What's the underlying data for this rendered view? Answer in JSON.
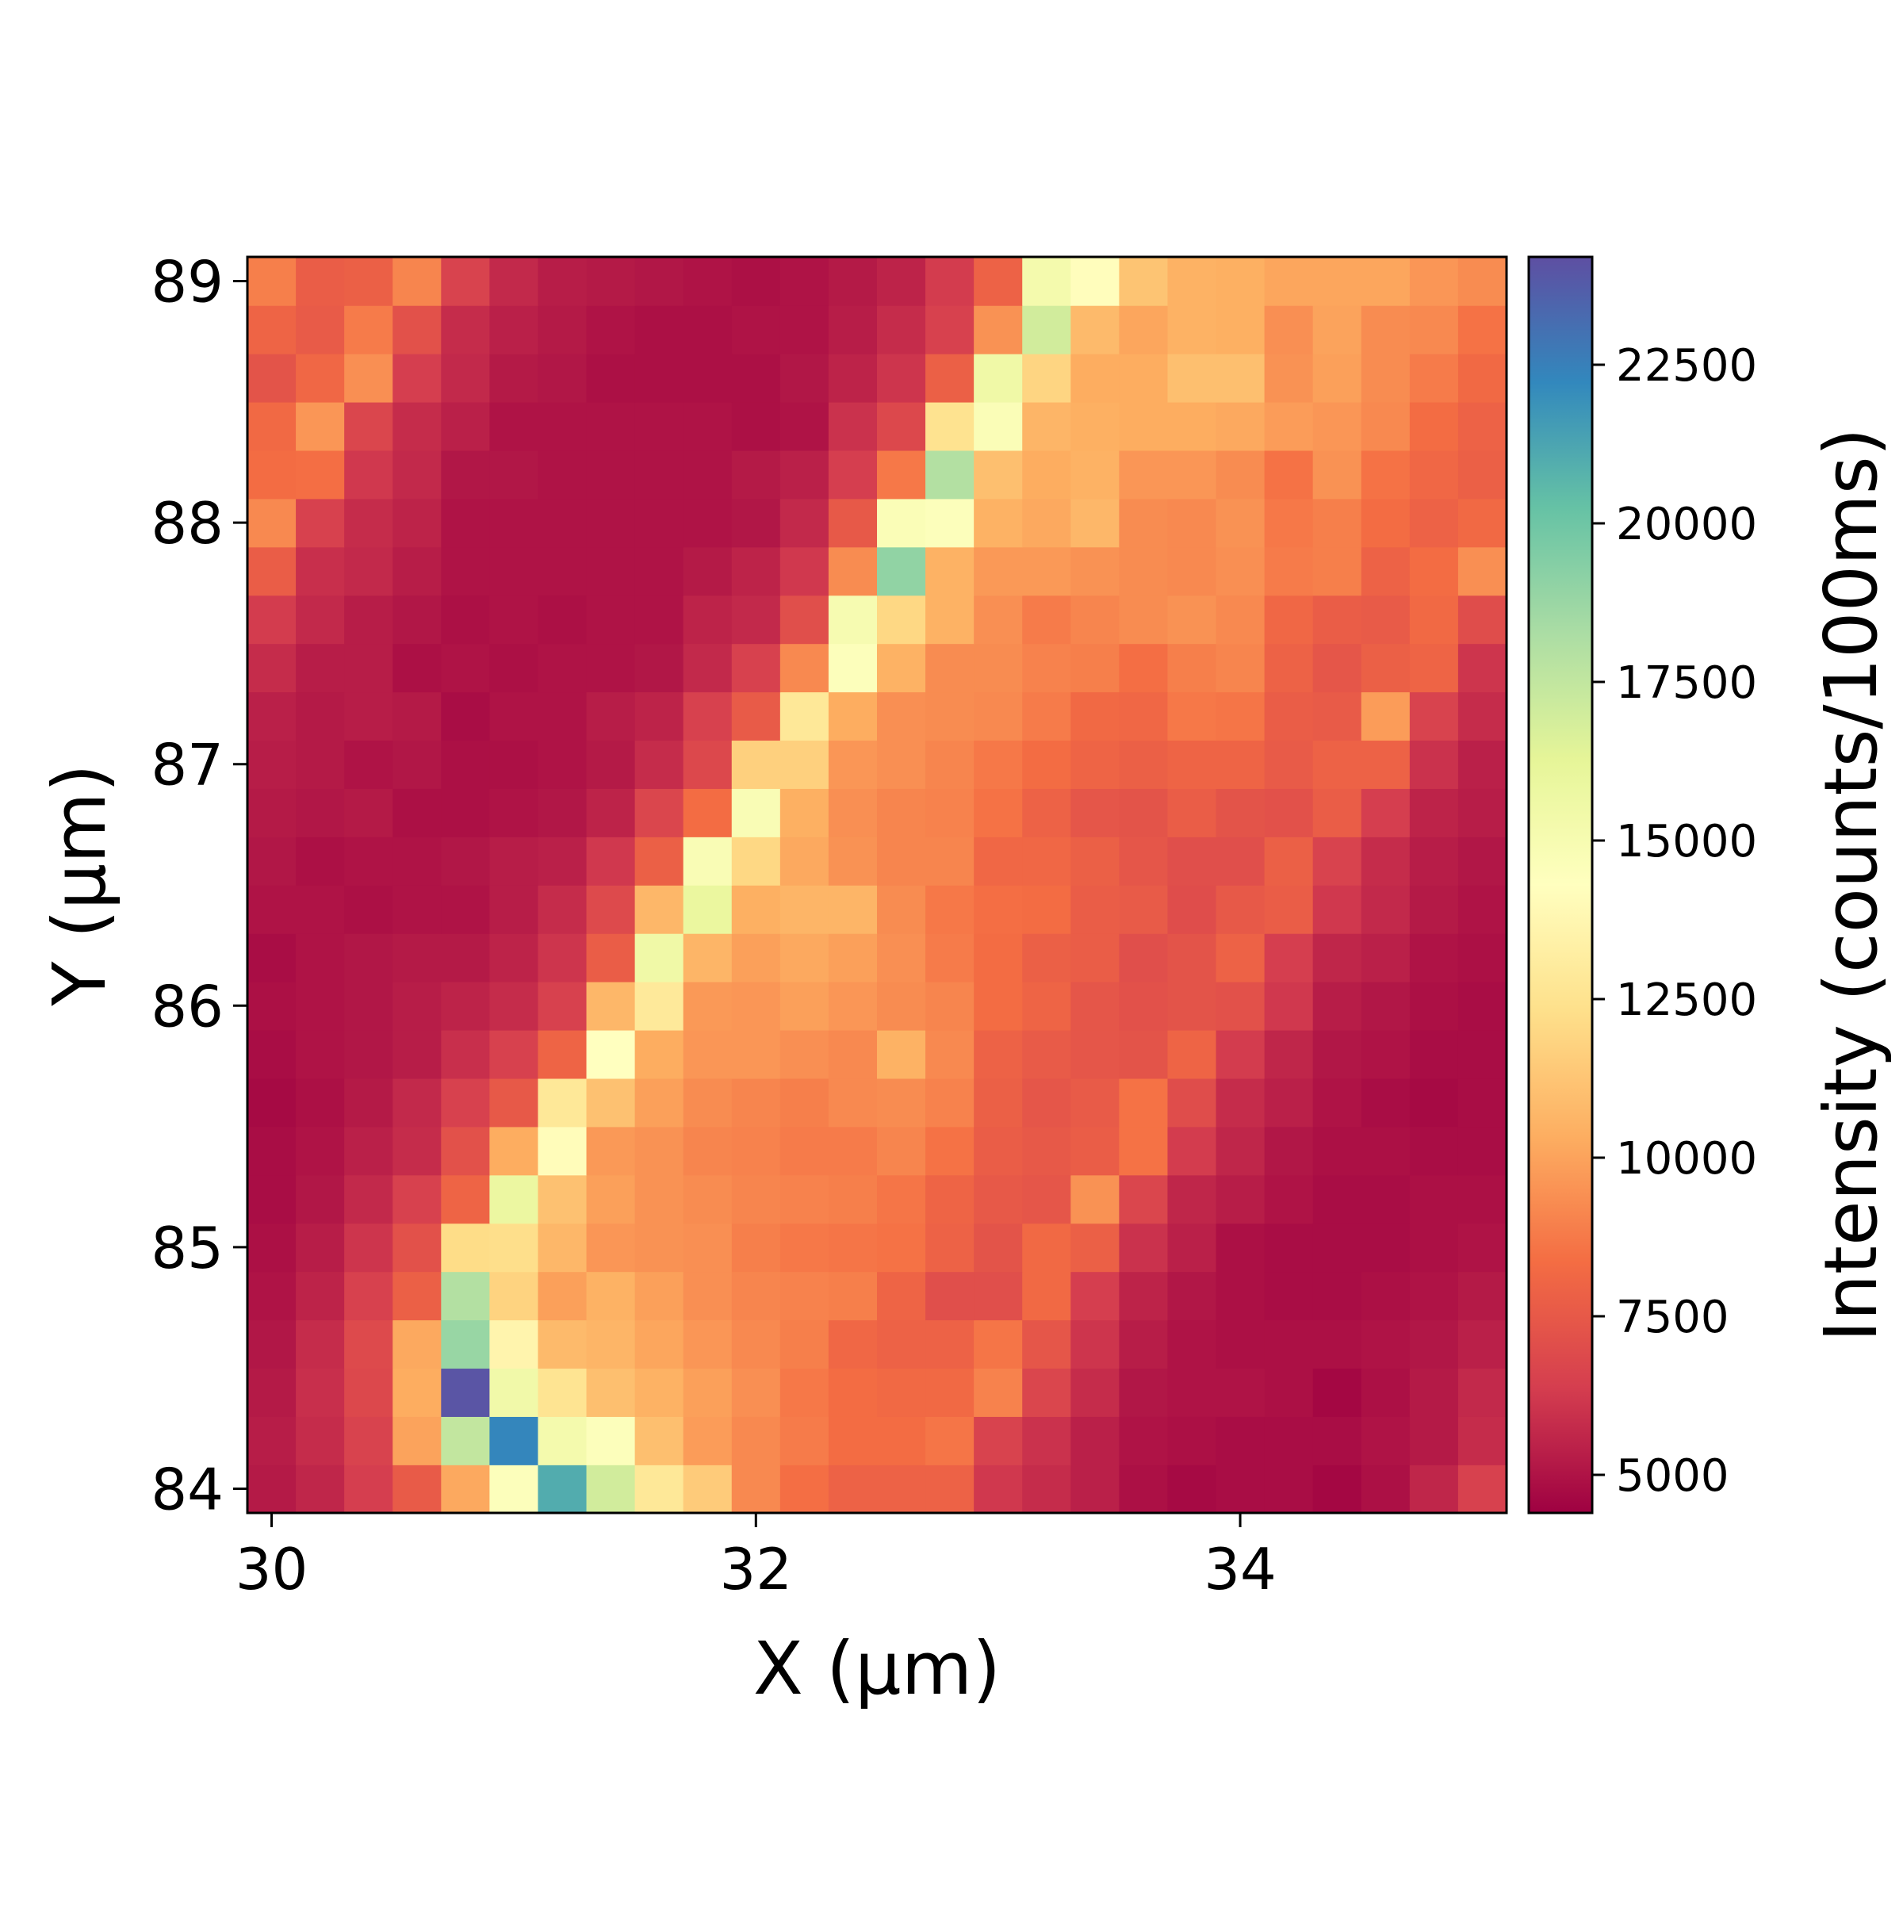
{
  "chart_data": {
    "type": "heatmap",
    "colormap": "Spectral",
    "xlabel": "X (µm)",
    "ylabel": "Y (µm)",
    "colorbar_label": "Intensity (counts/100ms)",
    "xlim": [
      29.9,
      35.1
    ],
    "ylim": [
      83.9,
      89.1
    ],
    "clim": [
      4400,
      24200
    ],
    "x_ticks": [
      "30",
      "32",
      "34"
    ],
    "y_ticks": [
      "84",
      "85",
      "86",
      "87",
      "88",
      "89"
    ],
    "colorbar_ticks": [
      "5000",
      "7500",
      "10000",
      "12500",
      "15000",
      "17500",
      "20000",
      "22500"
    ],
    "x": [
      30.0,
      30.2,
      30.4,
      30.6,
      30.8,
      31.0,
      31.2,
      31.4,
      31.6,
      31.8,
      32.0,
      32.2,
      32.4,
      32.6,
      32.8,
      33.0,
      33.2,
      33.4,
      33.6,
      33.8,
      34.0,
      34.2,
      34.4,
      34.6,
      34.8,
      35.0
    ],
    "y": [
      84.0,
      84.2,
      84.4,
      84.6,
      84.8,
      85.0,
      85.2,
      85.4,
      85.6,
      85.8,
      86.0,
      86.2,
      86.4,
      86.6,
      86.8,
      87.0,
      87.2,
      87.4,
      87.6,
      87.8,
      88.0,
      88.2,
      88.4,
      88.6,
      88.8,
      89.0
    ],
    "z": [
      [
        5200,
        5600,
        6400,
        7600,
        10200,
        14500,
        21000,
        17000,
        12800,
        11500,
        9200,
        8400,
        7900,
        7900,
        7900,
        6200,
        5800,
        5400,
        4900,
        4700,
        4800,
        4800,
        4600,
        4900,
        5600,
        6500
      ],
      [
        5300,
        5800,
        6600,
        10000,
        17500,
        22300,
        15200,
        14500,
        11000,
        9800,
        9200,
        8800,
        8300,
        8300,
        8600,
        6600,
        6000,
        5400,
        5000,
        4900,
        4800,
        4800,
        4800,
        5000,
        5200,
        5800
      ],
      [
        5200,
        5900,
        6800,
        10300,
        24000,
        15400,
        12600,
        11000,
        10500,
        9900,
        9400,
        8700,
        8300,
        8200,
        8200,
        9000,
        6700,
        5800,
        5100,
        5000,
        5000,
        4900,
        4600,
        4900,
        5200,
        5700
      ],
      [
        5100,
        5800,
        6900,
        10200,
        18800,
        13600,
        10800,
        10600,
        10100,
        9600,
        9200,
        8900,
        8100,
        7900,
        7900,
        8600,
        7400,
        6100,
        5300,
        5000,
        4900,
        4900,
        4900,
        5000,
        5100,
        5400
      ],
      [
        5000,
        5500,
        6500,
        7800,
        18000,
        11800,
        9900,
        10500,
        9900,
        9400,
        9100,
        9000,
        8900,
        8000,
        7100,
        7100,
        8200,
        6400,
        5500,
        5100,
        4900,
        4800,
        4800,
        4900,
        5000,
        5200
      ],
      [
        4900,
        5300,
        6100,
        7200,
        12200,
        12300,
        10700,
        9600,
        9500,
        9400,
        8900,
        8700,
        8600,
        8500,
        7900,
        7300,
        8200,
        7800,
        6000,
        5400,
        4900,
        4800,
        4800,
        4800,
        4900,
        5000
      ],
      [
        4800,
        5100,
        5700,
        6500,
        8000,
        15800,
        11100,
        9900,
        9500,
        9300,
        9100,
        9000,
        8900,
        8600,
        8000,
        7500,
        7400,
        9500,
        6700,
        5600,
        5300,
        5000,
        4800,
        4800,
        4900,
        4900
      ],
      [
        4800,
        5000,
        5400,
        5800,
        7200,
        10300,
        14100,
        9700,
        9500,
        9100,
        9000,
        8800,
        8800,
        9100,
        8500,
        7700,
        7500,
        7700,
        8500,
        6300,
        5600,
        5100,
        4900,
        4900,
        4800,
        4800
      ],
      [
        4700,
        4900,
        5200,
        5700,
        6500,
        7500,
        12800,
        11100,
        9900,
        9300,
        9100,
        8900,
        9200,
        9300,
        9000,
        7800,
        7400,
        7600,
        8500,
        7000,
        5800,
        5400,
        5000,
        4800,
        4700,
        4800
      ],
      [
        4800,
        5000,
        5100,
        5300,
        5900,
        6500,
        8000,
        14300,
        10300,
        9600,
        9600,
        9400,
        9200,
        10500,
        9200,
        7900,
        7600,
        7400,
        7300,
        8000,
        6300,
        5600,
        5100,
        5000,
        4800,
        4800
      ],
      [
        4900,
        5000,
        5100,
        5300,
        5500,
        5800,
        6500,
        10700,
        12900,
        9700,
        9600,
        9900,
        9600,
        9300,
        9100,
        8300,
        8000,
        7400,
        7200,
        7300,
        7200,
        6200,
        5300,
        5100,
        4900,
        4800
      ],
      [
        4800,
        5000,
        5100,
        5200,
        5200,
        5500,
        6100,
        7700,
        15500,
        10600,
        9900,
        10200,
        9900,
        9400,
        8800,
        8300,
        7800,
        7700,
        7100,
        7300,
        7900,
        6400,
        5600,
        5400,
        5000,
        4900
      ],
      [
        5000,
        5000,
        4900,
        5000,
        5000,
        5300,
        5800,
        6900,
        10700,
        15900,
        10400,
        10600,
        10600,
        9300,
        8700,
        8400,
        8300,
        7700,
        7600,
        7000,
        7500,
        7700,
        6200,
        5700,
        5200,
        5000
      ],
      [
        5100,
        4900,
        5000,
        5000,
        5100,
        5300,
        5400,
        6200,
        7800,
        14800,
        12000,
        10200,
        9500,
        9100,
        9100,
        8100,
        8100,
        7800,
        7400,
        7100,
        7100,
        7800,
        6600,
        5800,
        5300,
        5100
      ],
      [
        5200,
        5100,
        5200,
        4900,
        4900,
        5000,
        5100,
        5500,
        6700,
        8300,
        14800,
        10400,
        9400,
        9100,
        9000,
        8500,
        7900,
        7400,
        7300,
        7700,
        7300,
        7200,
        7700,
        6400,
        5500,
        5300
      ],
      [
        5300,
        5200,
        5000,
        5100,
        4900,
        4900,
        5000,
        5200,
        5800,
        6800,
        11700,
        11700,
        9600,
        9400,
        9100,
        8700,
        8300,
        8000,
        7800,
        8000,
        8000,
        7600,
        7900,
        7900,
        6000,
        5400
      ],
      [
        5400,
        5200,
        5300,
        5200,
        4800,
        5000,
        5000,
        5300,
        5500,
        6500,
        7600,
        12800,
        10300,
        9400,
        9300,
        9200,
        8800,
        8200,
        8100,
        8700,
        8600,
        7700,
        7600,
        9800,
        6600,
        5800
      ],
      [
        5800,
        5300,
        5300,
        4900,
        5000,
        4900,
        5000,
        5000,
        5100,
        5700,
        6500,
        9200,
        14500,
        10500,
        9300,
        9300,
        9000,
        8900,
        8400,
        8900,
        9100,
        7900,
        7400,
        7800,
        8000,
        6100
      ],
      [
        6300,
        5700,
        5300,
        5100,
        4900,
        5000,
        4900,
        5000,
        5000,
        5500,
        5700,
        7100,
        15000,
        12000,
        10500,
        9400,
        8800,
        9100,
        9300,
        9500,
        9200,
        8100,
        7700,
        7600,
        8200,
        7000
      ],
      [
        7700,
        5900,
        5700,
        5300,
        5000,
        5000,
        5000,
        5000,
        5000,
        5200,
        5500,
        6200,
        9300,
        19000,
        10500,
        9700,
        9700,
        9500,
        9300,
        9200,
        9400,
        8800,
        8900,
        7900,
        8300,
        9400
      ],
      [
        9200,
        6500,
        5800,
        5500,
        5000,
        5000,
        5000,
        5000,
        5000,
        5000,
        5100,
        5700,
        7500,
        14700,
        14500,
        10500,
        10200,
        10700,
        9300,
        9200,
        9500,
        8700,
        8900,
        8300,
        7900,
        8200
      ],
      [
        8300,
        8400,
        6200,
        5700,
        5100,
        5100,
        5000,
        5000,
        5000,
        5000,
        5200,
        5400,
        6400,
        8700,
        18000,
        11000,
        10300,
        10500,
        9600,
        9600,
        9300,
        8500,
        9500,
        8500,
        8100,
        7800
      ],
      [
        8200,
        9600,
        6700,
        5800,
        5400,
        5000,
        5000,
        5000,
        5000,
        5000,
        4900,
        5000,
        6000,
        6800,
        12500,
        14700,
        10600,
        10400,
        10300,
        10300,
        10200,
        9800,
        9600,
        9200,
        8300,
        7900
      ],
      [
        7300,
        8100,
        9400,
        6400,
        5700,
        5200,
        5100,
        4900,
        4900,
        4900,
        4900,
        5100,
        5500,
        6100,
        7800,
        15500,
        11900,
        10300,
        10300,
        11000,
        11000,
        9500,
        9900,
        9300,
        8800,
        8200
      ],
      [
        8000,
        7600,
        8800,
        7200,
        5800,
        5400,
        5200,
        5000,
        4900,
        4900,
        5000,
        5000,
        5300,
        5800,
        6500,
        9500,
        17000,
        10800,
        10100,
        10500,
        10400,
        9400,
        10000,
        9300,
        9200,
        8500
      ],
      [
        8900,
        7700,
        7800,
        9100,
        6600,
        5700,
        5300,
        5200,
        5100,
        5000,
        4900,
        5000,
        5200,
        5500,
        6300,
        7900,
        15200,
        14200,
        11200,
        10500,
        10400,
        10100,
        10100,
        10100,
        9600,
        9300
      ]
    ]
  }
}
